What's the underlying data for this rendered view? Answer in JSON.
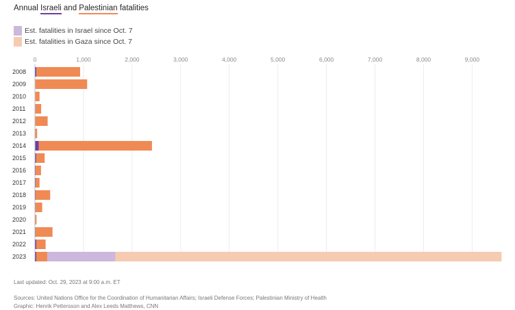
{
  "title": {
    "prefix": "Annual ",
    "israeli": "Israeli",
    "middle": " and ",
    "palestinian": "Palestinian",
    "suffix": " fatalities"
  },
  "legend": [
    {
      "label": "Est. fatalities in Israel since Oct. 7",
      "color": "#cbb8dc"
    },
    {
      "label": "Est. fatalities in Gaza since Oct. 7",
      "color": "#f6cbb2"
    }
  ],
  "colors": {
    "israeli": "#6b3ea3",
    "palestinian": "#f08a55",
    "israeli_since_oct7": "#cbb8dc",
    "gaza_since_oct7": "#f6cbb2",
    "title_israeli_underline": "#6b3ea3",
    "title_palestinian_underline": "#f08a55"
  },
  "chart_data": {
    "type": "bar",
    "orientation": "horizontal",
    "stacked": true,
    "categories": [
      "2008",
      "2009",
      "2010",
      "2011",
      "2012",
      "2013",
      "2014",
      "2015",
      "2016",
      "2017",
      "2018",
      "2019",
      "2020",
      "2021",
      "2022",
      "2023"
    ],
    "series": [
      {
        "key": "israeli",
        "values": [
          31,
          9,
          9,
          11,
          7,
          6,
          80,
          26,
          16,
          18,
          14,
          12,
          3,
          13,
          29,
          29
        ]
      },
      {
        "key": "palestinian",
        "values": [
          899,
          1066,
          86,
          118,
          255,
          39,
          2329,
          174,
          109,
          77,
          300,
          137,
          30,
          349,
          191,
          227
        ]
      },
      {
        "key": "israeli_since_oct7",
        "values": [
          0,
          0,
          0,
          0,
          0,
          0,
          0,
          0,
          0,
          0,
          0,
          0,
          0,
          0,
          0,
          1400
        ]
      },
      {
        "key": "gaza_since_oct7",
        "values": [
          0,
          0,
          0,
          0,
          0,
          0,
          0,
          0,
          0,
          0,
          0,
          0,
          0,
          0,
          0,
          7950
        ]
      }
    ],
    "xlim": [
      0,
      9600
    ],
    "ticks": [
      0,
      1000,
      2000,
      3000,
      4000,
      5000,
      6000,
      7000,
      8000,
      9000
    ],
    "tick_labels": [
      "0",
      "1,000",
      "2,000",
      "3,000",
      "4,000",
      "5,000",
      "6,000",
      "7,000",
      "8,000",
      "9,000"
    ],
    "grid": true
  },
  "footer": {
    "updated": "Last updated: Oct. 29, 2023 at 9:00 a.m. ET",
    "sources": "Sources: United Nations Office for the Coordination of Humanitarian Affairs; Israeli Defense Forces; Palestinian Ministry of Health",
    "graphic": "Graphic: Henrik Pettersson and Alex Leeds Matthews, CNN"
  }
}
